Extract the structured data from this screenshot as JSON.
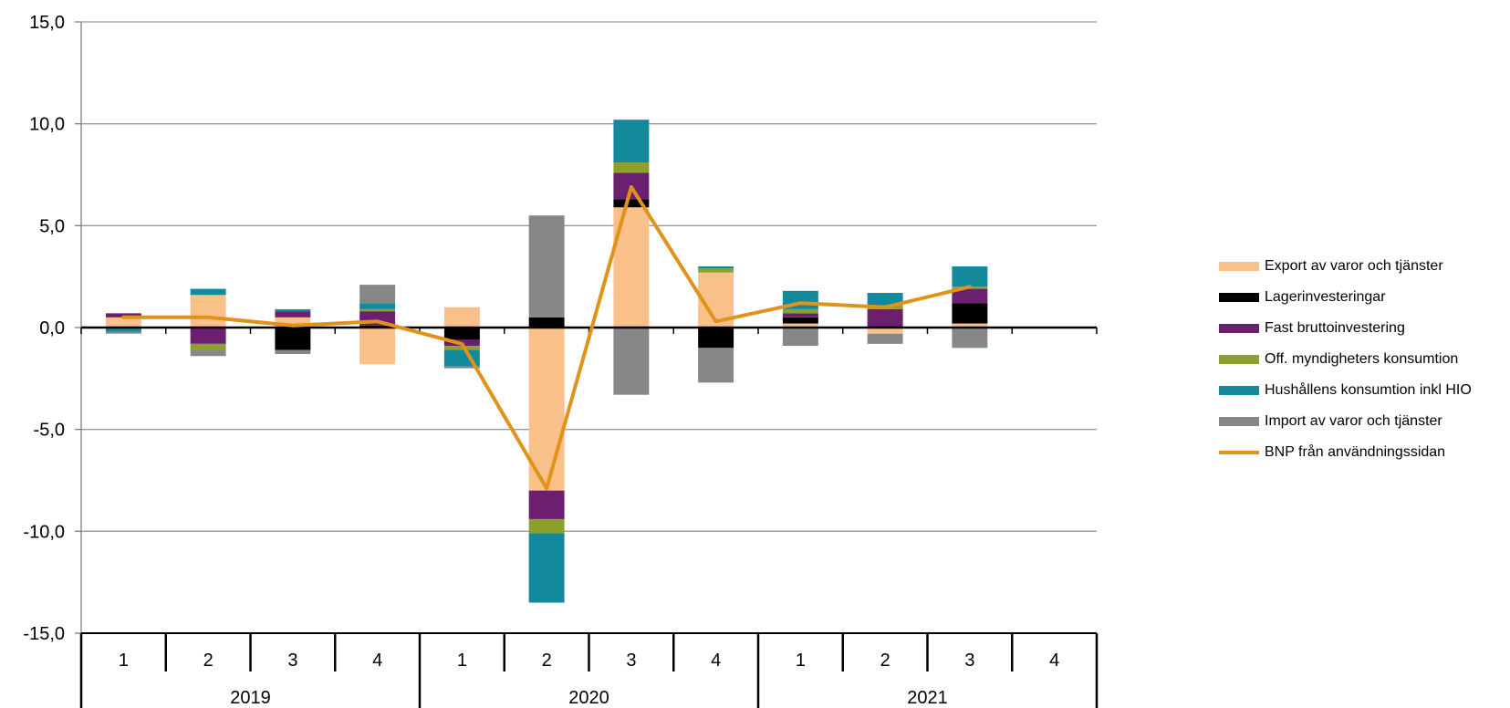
{
  "chart_data": {
    "type": "bar",
    "stacked": true,
    "title": "",
    "xlabel": "",
    "ylabel": "",
    "ylim": [
      -15,
      15
    ],
    "y_ticks": [
      "15,0",
      "10,0",
      "5,0",
      "0,0",
      "-5,0",
      "-10,0",
      "-15,0"
    ],
    "y_tick_values": [
      15,
      10,
      5,
      0,
      -5,
      -10,
      -15
    ],
    "grid": true,
    "legend_position": "right",
    "categories": [
      "1",
      "2",
      "3",
      "4",
      "1",
      "2",
      "3",
      "4",
      "1",
      "2",
      "3",
      "4"
    ],
    "year_groups": [
      {
        "label": "2019",
        "count": 4
      },
      {
        "label": "2020",
        "count": 4
      },
      {
        "label": "2021",
        "count": 4
      }
    ],
    "series": [
      {
        "name": "Export av varor och tjänster",
        "color": "#F9C08A",
        "kind": "bar",
        "values": [
          0.5,
          1.6,
          0.5,
          -1.8,
          1.0,
          -8.0,
          5.9,
          2.7,
          0.2,
          -0.3,
          0.2,
          null
        ]
      },
      {
        "name": "Lagerinvesteringar",
        "color": "#000000",
        "kind": "bar",
        "values": [
          0.0,
          0.0,
          -1.1,
          0.1,
          -0.6,
          0.5,
          0.4,
          -1.0,
          0.3,
          0.0,
          1.0,
          null
        ]
      },
      {
        "name": "Fast bruttoinvestering",
        "color": "#6B1F6E",
        "kind": "bar",
        "values": [
          0.2,
          -0.8,
          0.3,
          0.7,
          -0.3,
          -1.4,
          1.3,
          0.0,
          0.2,
          0.9,
          0.7,
          null
        ]
      },
      {
        "name": "Off. myndigheters konsumtion",
        "color": "#8BA02D",
        "kind": "bar",
        "values": [
          0.0,
          -0.3,
          0.0,
          0.1,
          -0.2,
          -0.7,
          0.5,
          0.2,
          0.2,
          0.2,
          0.1,
          null
        ]
      },
      {
        "name": "Hushållens konsumtion inkl HIO",
        "color": "#138A9C",
        "kind": "bar",
        "values": [
          -0.2,
          0.3,
          0.1,
          0.3,
          -0.8,
          -3.4,
          2.1,
          0.1,
          0.9,
          0.6,
          1.0,
          null
        ]
      },
      {
        "name": "Import av varor och tjänster",
        "color": "#878787",
        "kind": "bar",
        "values": [
          -0.1,
          -0.3,
          -0.2,
          0.9,
          -0.1,
          5.0,
          -3.3,
          -1.7,
          -0.9,
          -0.5,
          -1.0,
          null
        ]
      },
      {
        "name": "BNP från användningssidan",
        "color": "#E0921B",
        "kind": "line",
        "values": [
          0.5,
          0.5,
          0.1,
          0.3,
          -0.8,
          -7.9,
          6.9,
          0.3,
          1.2,
          1.0,
          2.0,
          null
        ]
      }
    ]
  }
}
